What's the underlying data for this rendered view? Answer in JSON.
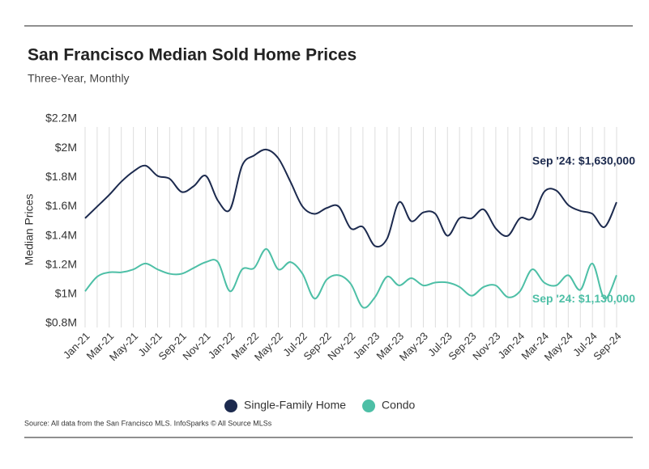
{
  "chart_data": {
    "type": "line",
    "title": "San Francisco Median Sold Home Prices",
    "subtitle": "Three-Year, Monthly",
    "y_label": "Median Prices",
    "source": "Source:  All data from the San Francisco MLS. InfoSparks © All Source MLSs",
    "categories": [
      "Jan-21",
      null,
      "Mar-21",
      null,
      "May-21",
      null,
      "Jul-21",
      null,
      "Sep-21",
      null,
      "Nov-21",
      null,
      "Jan-22",
      null,
      "Mar-22",
      null,
      "May-22",
      null,
      "Jul-22",
      null,
      "Sep-22",
      null,
      "Nov-22",
      null,
      "Jan-23",
      null,
      "Mar-23",
      null,
      "May-23",
      null,
      "Jul-23",
      null,
      "Sep-23",
      null,
      "Nov-23",
      null,
      "Jan-24",
      null,
      "Mar-24",
      null,
      "May-24",
      null,
      "Jul-24",
      null,
      "Sep-24"
    ],
    "series": [
      {
        "name": "Single-Family Home",
        "color": "#1c2a4e",
        "values": [
          1520000,
          1600000,
          1680000,
          1770000,
          1840000,
          1880000,
          1810000,
          1790000,
          1700000,
          1740000,
          1810000,
          1640000,
          1580000,
          1880000,
          1950000,
          1990000,
          1930000,
          1770000,
          1600000,
          1550000,
          1590000,
          1600000,
          1450000,
          1460000,
          1330000,
          1380000,
          1630000,
          1500000,
          1560000,
          1550000,
          1400000,
          1520000,
          1520000,
          1580000,
          1450000,
          1400000,
          1520000,
          1520000,
          1700000,
          1710000,
          1610000,
          1570000,
          1550000,
          1460000,
          1630000
        ]
      },
      {
        "name": "Condo",
        "color": "#4dbfa6",
        "values": [
          1020000,
          1120000,
          1150000,
          1150000,
          1170000,
          1210000,
          1170000,
          1140000,
          1140000,
          1180000,
          1220000,
          1220000,
          1020000,
          1170000,
          1180000,
          1310000,
          1170000,
          1220000,
          1140000,
          970000,
          1100000,
          1130000,
          1070000,
          910000,
          980000,
          1120000,
          1060000,
          1110000,
          1060000,
          1080000,
          1080000,
          1050000,
          990000,
          1050000,
          1060000,
          980000,
          1020000,
          1170000,
          1080000,
          1060000,
          1130000,
          1030000,
          1210000,
          970000,
          1130000
        ]
      }
    ],
    "annotations": [
      {
        "text": "Sep '24: $1,630,000",
        "series": 0
      },
      {
        "text": "Sep '24: $1,130,000",
        "series": 1
      }
    ],
    "ylim": [
      800000,
      2200000
    ],
    "yticks": [
      {
        "value": 800000,
        "label": "$0.8M"
      },
      {
        "value": 1000000,
        "label": "$1M"
      },
      {
        "value": 1200000,
        "label": "$1.2M"
      },
      {
        "value": 1400000,
        "label": "$1.4M"
      },
      {
        "value": 1600000,
        "label": "$1.6M"
      },
      {
        "value": 1800000,
        "label": "$1.8M"
      },
      {
        "value": 2000000,
        "label": "$2M"
      },
      {
        "value": 2200000,
        "label": "$2.2M"
      }
    ],
    "grid": true,
    "legend": "bottom"
  }
}
